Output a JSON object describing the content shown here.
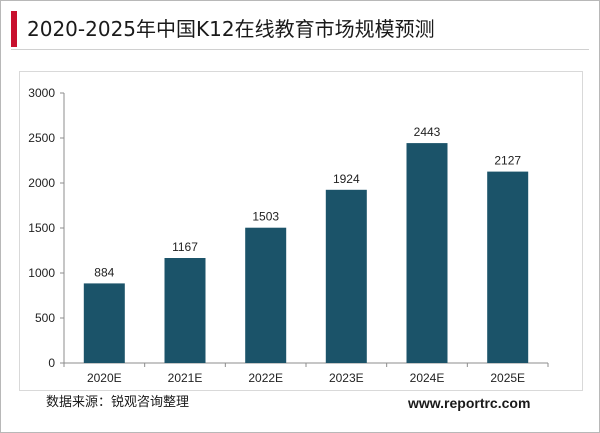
{
  "header": {
    "title": "2020-2025年中国K12在线教育市场规模预测"
  },
  "footer": {
    "source": "数据来源：锐观咨询整理",
    "website": "www.reportrc.com"
  },
  "colors": {
    "bar": "#1b5369",
    "accent": "#c8102e"
  },
  "chart_data": {
    "type": "bar",
    "title": "2020-2025年中国K12在线教育市场规模预测",
    "xlabel": "",
    "ylabel": "",
    "categories": [
      "2020E",
      "2021E",
      "2022E",
      "2023E",
      "2024E",
      "2025E"
    ],
    "values": [
      884,
      1167,
      1503,
      1924,
      2443,
      2127
    ],
    "data_labels": [
      "884",
      "1167",
      "1503",
      "1924",
      "2443",
      "2127"
    ],
    "ylim": [
      0,
      3000
    ],
    "yticks": [
      0,
      500,
      1000,
      1500,
      2000,
      2500,
      3000
    ],
    "ytick_labels": [
      "0",
      "500",
      "1000",
      "1500",
      "2000",
      "2500",
      "3000"
    ],
    "grid": false,
    "legend": "none"
  }
}
